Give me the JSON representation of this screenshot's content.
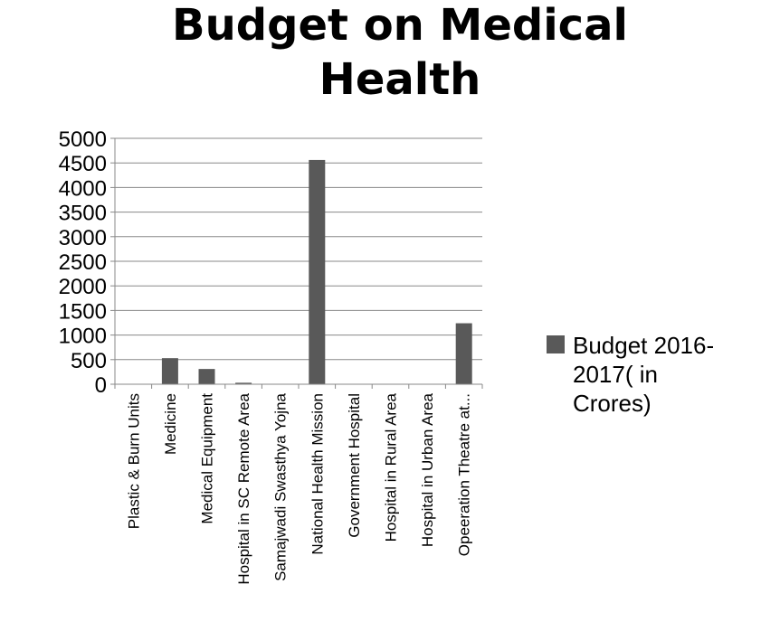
{
  "chart_data": {
    "type": "bar",
    "title": [
      "Budget on Medical",
      "Health"
    ],
    "categories": [
      "Plastic & Burn Units",
      "Medicine",
      "Medical Equipment",
      "Hospital in SC  Remote Area",
      "Samajwadi Swasthya Yojna",
      "National Health Mission",
      "Government Hospital",
      "Hospital in Rural Area",
      "Hospital in Urban Area",
      "Opeeration Theatre at..."
    ],
    "series": [
      {
        "name": [
          "Budget 2016-",
          "2017( in",
          "Crores)"
        ],
        "color": "#595959",
        "values": [
          0,
          530,
          310,
          30,
          5,
          4560,
          5,
          5,
          5,
          1240
        ]
      }
    ],
    "ylim": [
      0,
      5000
    ],
    "yticks": [
      "0",
      "500",
      "1000",
      "1500",
      "2000",
      "2500",
      "3000",
      "3500",
      "4000",
      "4500",
      "5000"
    ],
    "grid": true,
    "legend_position": "right"
  }
}
